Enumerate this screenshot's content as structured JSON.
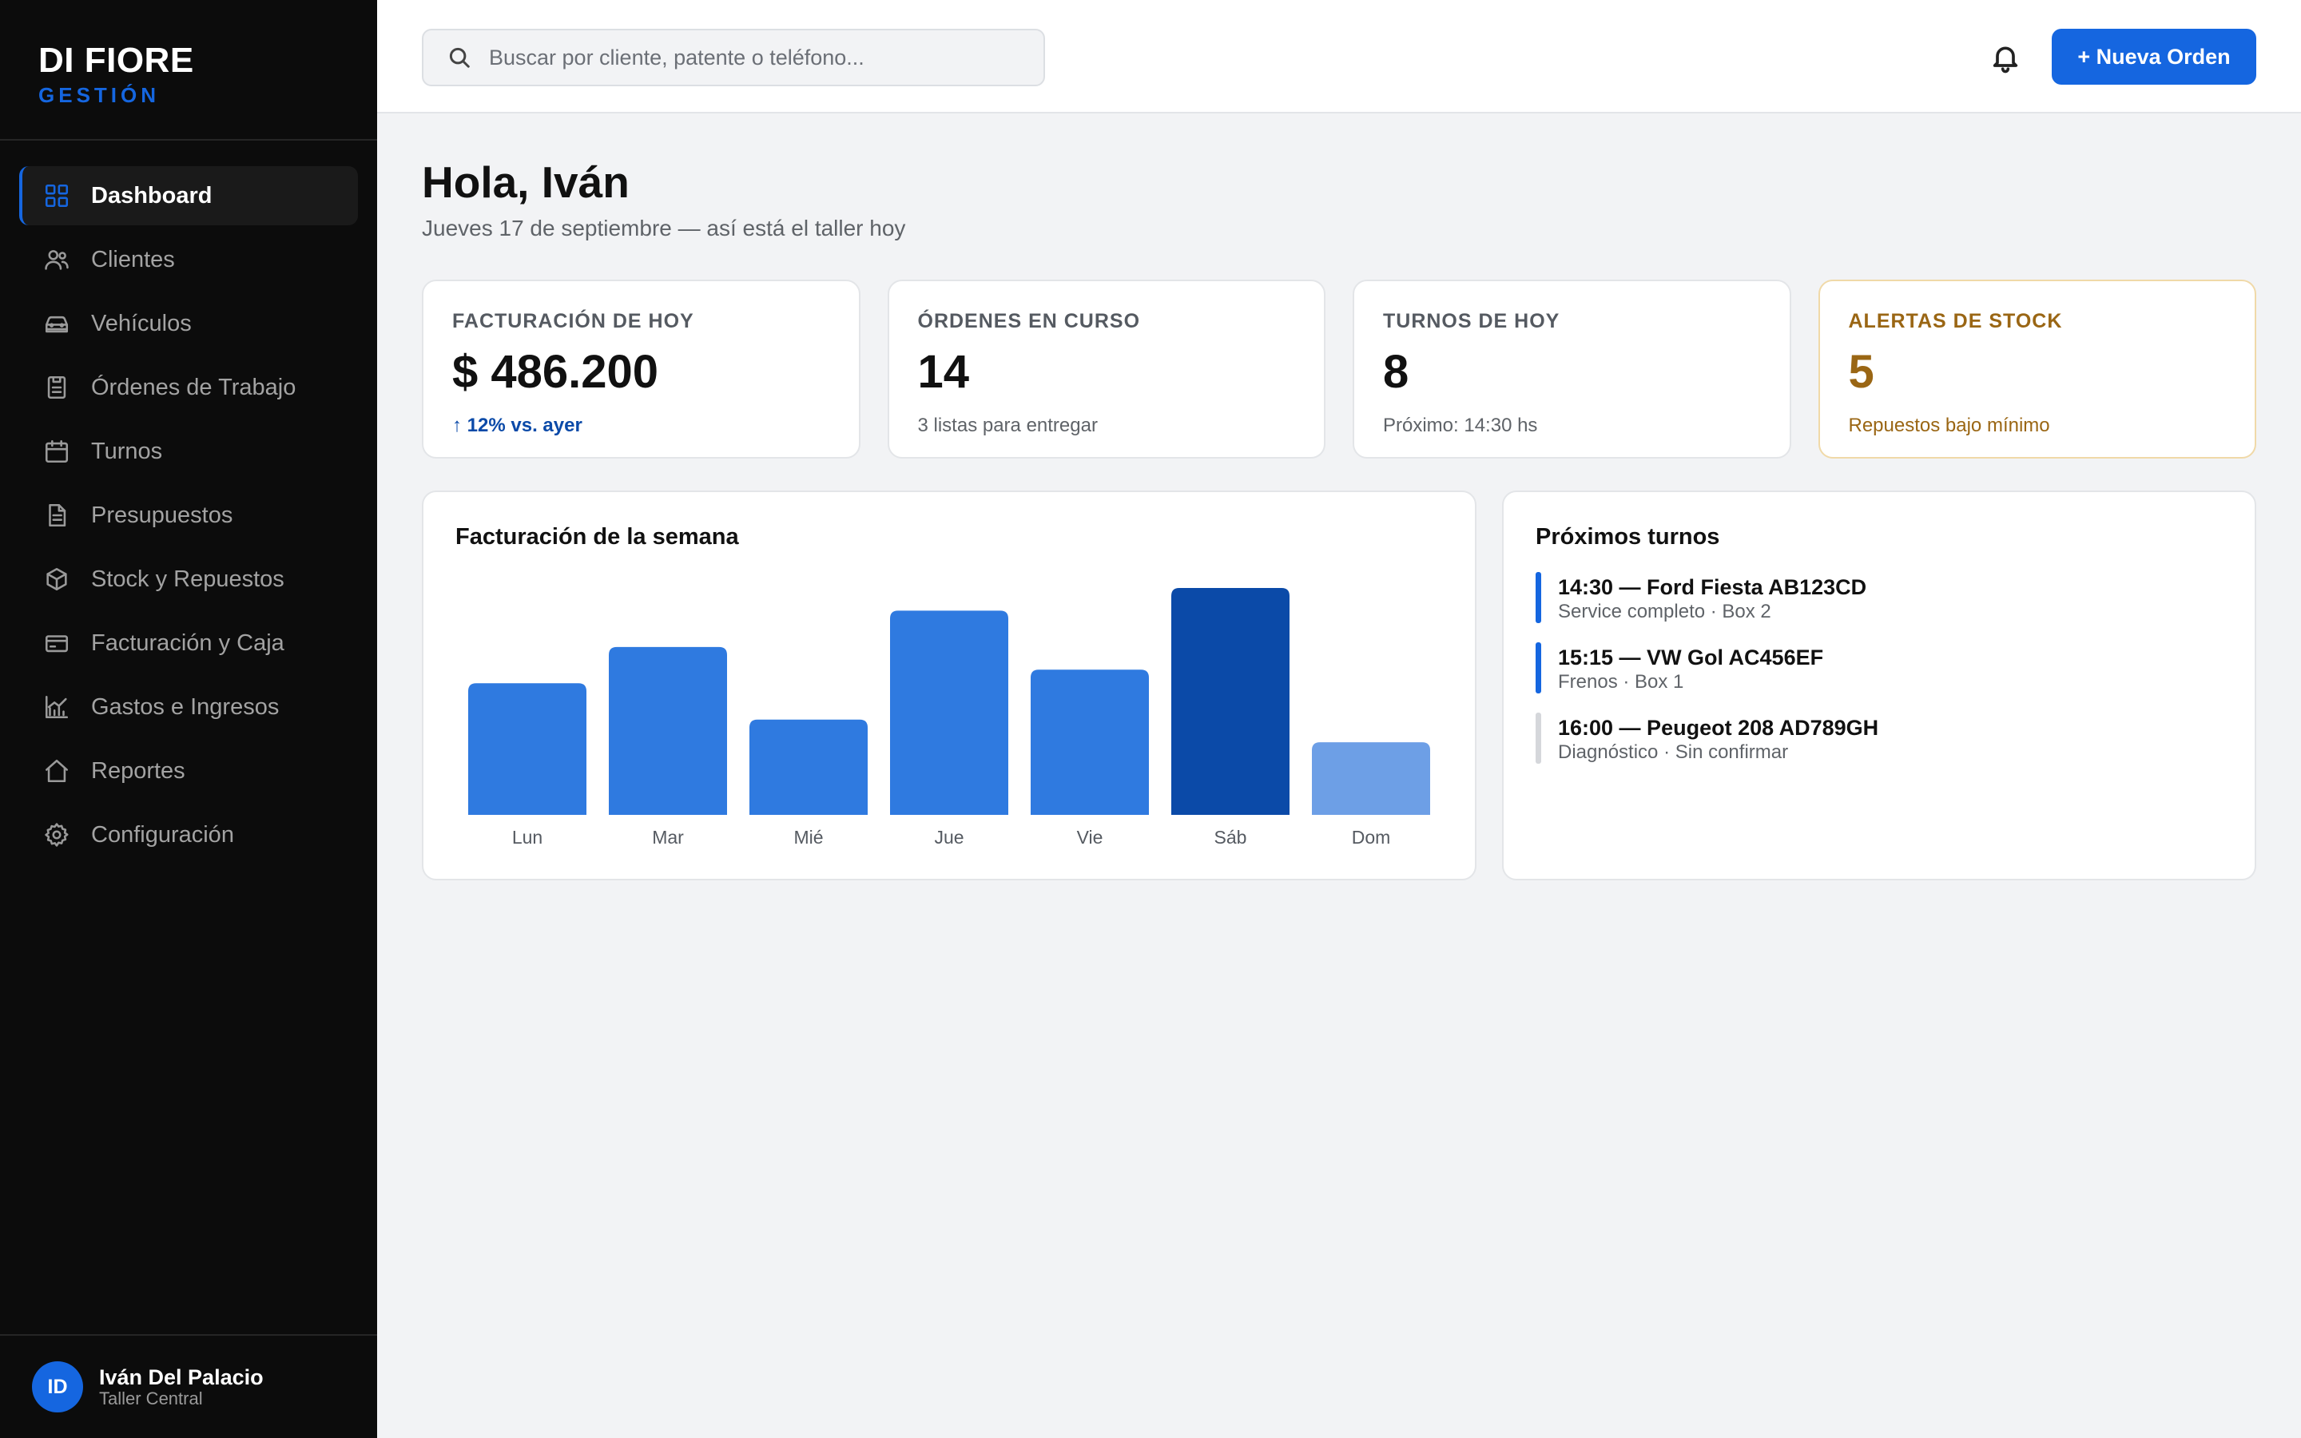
{
  "brand": {
    "title": "DI FIORE",
    "subtitle": "GESTIÓN"
  },
  "sidebar": {
    "items": [
      {
        "label": "Dashboard",
        "icon": "grid-icon",
        "active": true
      },
      {
        "label": "Clientes",
        "icon": "users-icon"
      },
      {
        "label": "Vehículos",
        "icon": "car-icon"
      },
      {
        "label": "Órdenes de Trabajo",
        "icon": "clipboard-icon"
      },
      {
        "label": "Turnos",
        "icon": "calendar-icon"
      },
      {
        "label": "Presupuestos",
        "icon": "file-text-icon"
      },
      {
        "label": "Stock y Repuestos",
        "icon": "box-icon"
      },
      {
        "label": "Facturación y Caja",
        "icon": "credit-card-icon"
      },
      {
        "label": "Gastos e Ingresos",
        "icon": "chart-line-icon"
      },
      {
        "label": "Reportes",
        "icon": "home-icon"
      },
      {
        "label": "Configuración",
        "icon": "gear-icon"
      }
    ]
  },
  "user": {
    "initials": "ID",
    "name": "Iván Del Palacio",
    "role": "Taller Central"
  },
  "header": {
    "search_placeholder": "Buscar por cliente, patente o teléfono...",
    "new_order_label": "+ Nueva Orden"
  },
  "main": {
    "greeting": "Hola, Iván",
    "subtitle": "Jueves 17 de septiembre — así está el taller hoy"
  },
  "cards": [
    {
      "label": "FACTURACIÓN DE HOY",
      "value": "$ 486.200",
      "note": "↑ 12% vs. ayer"
    },
    {
      "label": "ÓRDENES EN CURSO",
      "value": "14",
      "note": "3 listas para entregar"
    },
    {
      "label": "TURNOS DE HOY",
      "value": "8",
      "note": "Próximo: 14:30 hs"
    },
    {
      "label": "ALERTAS DE STOCK",
      "value": "5",
      "note": "Repuestos bajo mínimo"
    }
  ],
  "colors": {
    "accent": "#1566e0",
    "bar": "#2f7ae0",
    "bar_peak": "#0b4aa8",
    "bar_light": "#6d9fe6",
    "warning": "#9a6614"
  },
  "chart_data": {
    "type": "bar",
    "title": "Facturación de la semana",
    "categories": [
      "Lun",
      "Mar",
      "Mié",
      "Jue",
      "Vie",
      "Sáb",
      "Dom"
    ],
    "values": [
      58,
      74,
      42,
      90,
      64,
      100,
      32
    ],
    "ylim": [
      0,
      100
    ],
    "grid": false,
    "highlight_index": 5,
    "muted_index": 6
  },
  "turnos": {
    "title": "Próximos turnos",
    "items": [
      {
        "title": "14:30 — Ford Fiesta AB123CD",
        "detail": "Service completo · Box 2",
        "confirmed": true
      },
      {
        "title": "15:15 — VW Gol AC456EF",
        "detail": "Frenos · Box 1",
        "confirmed": true
      },
      {
        "title": "16:00 — Peugeot 208 AD789GH",
        "detail": "Diagnóstico · Sin confirmar",
        "confirmed": false
      }
    ]
  }
}
